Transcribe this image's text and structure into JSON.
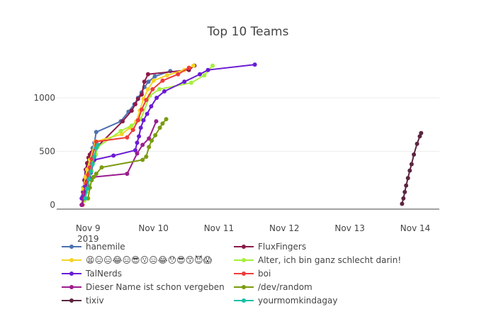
{
  "chart_data": {
    "type": "line",
    "title": "Top 10 Teams",
    "xlabel": "",
    "ylabel": "",
    "xlim": [
      "2019-11-08T12:30",
      "2019-11-14T08:50"
    ],
    "ylim": [
      -40,
      1450
    ],
    "grid": "y-gridlines",
    "legend_position": "bottom",
    "x_ticks": [
      {
        "value": "2019-11-09T00:00",
        "label": "Nov 9",
        "sublabel": "2019"
      },
      {
        "value": "2019-11-10T00:00",
        "label": "Nov 10",
        "sublabel": ""
      },
      {
        "value": "2019-11-11T00:00",
        "label": "Nov 11",
        "sublabel": ""
      },
      {
        "value": "2019-11-12T00:00",
        "label": "Nov 12",
        "sublabel": ""
      },
      {
        "value": "2019-11-13T00:00",
        "label": "Nov 13",
        "sublabel": ""
      },
      {
        "value": "2019-11-14T00:00",
        "label": "Nov 14",
        "sublabel": ""
      }
    ],
    "y_ticks": [
      {
        "value": 0,
        "label": "0"
      },
      {
        "value": 500,
        "label": "500"
      },
      {
        "value": 1000,
        "label": "1000"
      }
    ],
    "series": [
      {
        "name": "hanemile",
        "color": "#4c72b0",
        "points": [
          [
            "2019-11-08T21:40",
            0
          ],
          [
            "2019-11-08T22:00",
            80
          ],
          [
            "2019-11-08T22:20",
            160
          ],
          [
            "2019-11-08T22:50",
            240
          ],
          [
            "2019-11-08T23:20",
            300
          ],
          [
            "2019-11-08T23:50",
            350
          ],
          [
            "2019-11-09T00:20",
            400
          ],
          [
            "2019-11-09T01:00",
            460
          ],
          [
            "2019-11-09T01:40",
            530
          ],
          [
            "2019-11-09T02:20",
            580
          ],
          [
            "2019-11-09T03:00",
            680
          ],
          [
            "2019-11-09T12:00",
            780
          ],
          [
            "2019-11-09T14:50",
            870
          ],
          [
            "2019-11-09T17:00",
            940
          ],
          [
            "2019-11-09T18:20",
            1000
          ],
          [
            "2019-11-09T19:40",
            1050
          ],
          [
            "2019-11-09T20:40",
            1100
          ],
          [
            "2019-11-09T22:10",
            1150
          ],
          [
            "2019-11-10T00:30",
            1200
          ],
          [
            "2019-11-10T06:10",
            1250
          ]
        ]
      },
      {
        "name": "FluxFingers",
        "color": "#8b1a4a",
        "points": [
          [
            "2019-11-08T21:40",
            0
          ],
          [
            "2019-11-08T22:10",
            120
          ],
          [
            "2019-11-08T22:40",
            230
          ],
          [
            "2019-11-08T23:10",
            330
          ],
          [
            "2019-11-08T23:40",
            390
          ],
          [
            "2019-11-09T00:10",
            440
          ],
          [
            "2019-11-09T00:40",
            470
          ],
          [
            "2019-11-09T01:20",
            490
          ],
          [
            "2019-11-09T12:40",
            780
          ],
          [
            "2019-11-09T16:00",
            880
          ],
          [
            "2019-11-09T17:20",
            940
          ],
          [
            "2019-11-09T18:20",
            990
          ],
          [
            "2019-11-09T19:40",
            1030
          ],
          [
            "2019-11-09T20:40",
            1150
          ],
          [
            "2019-11-09T22:00",
            1220
          ],
          [
            "2019-11-10T13:00",
            1260
          ],
          [
            "2019-11-10T15:00",
            1300
          ]
        ]
      },
      {
        "name": "😫😑😑😂😑😎😗😑😂😯😎😙😈😱",
        "color": "#f5d327",
        "points": [
          [
            "2019-11-08T21:40",
            0
          ],
          [
            "2019-11-08T22:20",
            150
          ],
          [
            "2019-11-08T23:00",
            260
          ],
          [
            "2019-11-08T23:40",
            330
          ],
          [
            "2019-11-09T00:40",
            420
          ],
          [
            "2019-11-09T02:40",
            590
          ],
          [
            "2019-11-09T12:20",
            660
          ],
          [
            "2019-11-09T15:20",
            720
          ],
          [
            "2019-11-09T17:40",
            780
          ],
          [
            "2019-11-09T19:00",
            880
          ],
          [
            "2019-11-09T20:20",
            990
          ],
          [
            "2019-11-09T22:00",
            1080
          ],
          [
            "2019-11-10T00:00",
            1160
          ],
          [
            "2019-11-10T05:00",
            1210
          ],
          [
            "2019-11-10T11:20",
            1260
          ],
          [
            "2019-11-10T14:40",
            1300
          ]
        ]
      },
      {
        "name": "Alter, ich bin ganz schlecht darin!",
        "color": "#a6ef3c",
        "points": [
          [
            "2019-11-08T22:40",
            40
          ],
          [
            "2019-11-08T23:20",
            120
          ],
          [
            "2019-11-09T00:00",
            190
          ],
          [
            "2019-11-09T00:40",
            250
          ],
          [
            "2019-11-09T01:20",
            320
          ],
          [
            "2019-11-09T02:00",
            400
          ],
          [
            "2019-11-09T02:50",
            470
          ],
          [
            "2019-11-09T03:30",
            540
          ],
          [
            "2019-11-09T12:00",
            690
          ],
          [
            "2019-11-09T16:00",
            740
          ],
          [
            "2019-11-09T19:20",
            800
          ],
          [
            "2019-11-09T22:40",
            1020
          ],
          [
            "2019-11-10T02:10",
            1080
          ],
          [
            "2019-11-10T13:50",
            1140
          ],
          [
            "2019-11-10T18:40",
            1210
          ],
          [
            "2019-11-10T21:40",
            1300
          ]
        ]
      },
      {
        "name": "TalNerds",
        "color": "#6a1bd4",
        "points": [
          [
            "2019-11-08T21:40",
            60
          ],
          [
            "2019-11-08T22:20",
            110
          ],
          [
            "2019-11-08T23:00",
            170
          ],
          [
            "2019-11-08T23:40",
            220
          ],
          [
            "2019-11-09T00:20",
            260
          ],
          [
            "2019-11-09T01:00",
            300
          ],
          [
            "2019-11-09T02:20",
            420
          ],
          [
            "2019-11-09T09:20",
            460
          ],
          [
            "2019-11-09T17:20",
            510
          ],
          [
            "2019-11-09T18:00",
            580
          ],
          [
            "2019-11-09T18:40",
            640
          ],
          [
            "2019-11-09T19:20",
            720
          ],
          [
            "2019-11-09T20:20",
            790
          ],
          [
            "2019-11-09T21:40",
            850
          ],
          [
            "2019-11-09T23:10",
            920
          ],
          [
            "2019-11-10T01:10",
            1000
          ],
          [
            "2019-11-10T04:00",
            1060
          ],
          [
            "2019-11-10T11:20",
            1150
          ],
          [
            "2019-11-10T17:00",
            1220
          ],
          [
            "2019-11-10T20:00",
            1260
          ],
          [
            "2019-11-11T13:10",
            1310
          ]
        ]
      },
      {
        "name": "boi",
        "color": "#ef3b3b",
        "points": [
          [
            "2019-11-08T22:00",
            0
          ],
          [
            "2019-11-08T22:40",
            110
          ],
          [
            "2019-11-08T23:20",
            200
          ],
          [
            "2019-11-09T00:00",
            280
          ],
          [
            "2019-11-09T00:40",
            350
          ],
          [
            "2019-11-09T01:20",
            430
          ],
          [
            "2019-11-09T03:00",
            590
          ],
          [
            "2019-11-09T14:20",
            630
          ],
          [
            "2019-11-09T16:30",
            700
          ],
          [
            "2019-11-09T18:20",
            790
          ],
          [
            "2019-11-09T19:40",
            890
          ],
          [
            "2019-11-09T21:20",
            980
          ],
          [
            "2019-11-09T23:40",
            1080
          ],
          [
            "2019-11-10T03:20",
            1160
          ],
          [
            "2019-11-10T09:00",
            1220
          ],
          [
            "2019-11-10T13:00",
            1280
          ]
        ]
      },
      {
        "name": "Dieser Name ist schon vergeben",
        "color": "#9c1c8f",
        "points": [
          [
            "2019-11-08T21:40",
            0
          ],
          [
            "2019-11-08T22:20",
            60
          ],
          [
            "2019-11-08T23:00",
            120
          ],
          [
            "2019-11-08T23:40",
            180
          ],
          [
            "2019-11-09T00:20",
            240
          ],
          [
            "2019-11-09T02:00",
            260
          ],
          [
            "2019-11-09T14:20",
            290
          ],
          [
            "2019-11-09T18:00",
            480
          ],
          [
            "2019-11-09T20:00",
            560
          ],
          [
            "2019-11-09T22:20",
            620
          ],
          [
            "2019-11-10T01:00",
            780
          ]
        ]
      },
      {
        "name": "/dev/random",
        "color": "#7b9b10",
        "points": [
          [
            "2019-11-09T00:00",
            60
          ],
          [
            "2019-11-09T00:40",
            160
          ],
          [
            "2019-11-09T01:20",
            230
          ],
          [
            "2019-11-09T02:00",
            260
          ],
          [
            "2019-11-09T03:00",
            290
          ],
          [
            "2019-11-09T05:00",
            350
          ],
          [
            "2019-11-09T20:00",
            420
          ],
          [
            "2019-11-09T21:20",
            450
          ],
          [
            "2019-11-09T22:20",
            540
          ],
          [
            "2019-11-09T23:20",
            600
          ],
          [
            "2019-11-10T00:40",
            650
          ],
          [
            "2019-11-10T02:20",
            720
          ],
          [
            "2019-11-10T03:20",
            760
          ],
          [
            "2019-11-10T04:40",
            800
          ]
        ]
      },
      {
        "name": "tixiv",
        "color": "#5b2540",
        "points": [
          [
            "2019-11-13T19:10",
            10
          ],
          [
            "2019-11-13T19:40",
            60
          ],
          [
            "2019-11-13T20:10",
            120
          ],
          [
            "2019-11-13T20:40",
            180
          ],
          [
            "2019-11-13T21:20",
            250
          ],
          [
            "2019-11-13T22:00",
            320
          ],
          [
            "2019-11-13T22:40",
            380
          ],
          [
            "2019-11-13T23:30",
            470
          ],
          [
            "2019-11-14T00:40",
            570
          ],
          [
            "2019-11-14T01:40",
            640
          ],
          [
            "2019-11-14T02:10",
            670
          ]
        ]
      },
      {
        "name": "yourmomkindagay",
        "color": "#17bfa7",
        "points": [
          [
            "2019-11-08T23:00",
            60
          ],
          [
            "2019-11-08T23:40",
            150
          ],
          [
            "2019-11-09T00:20",
            240
          ],
          [
            "2019-11-09T01:00",
            310
          ],
          [
            "2019-11-09T01:40",
            380
          ],
          [
            "2019-11-09T02:20",
            450
          ],
          [
            "2019-11-09T03:00",
            530
          ],
          [
            "2019-11-09T03:40",
            560
          ]
        ]
      }
    ]
  }
}
